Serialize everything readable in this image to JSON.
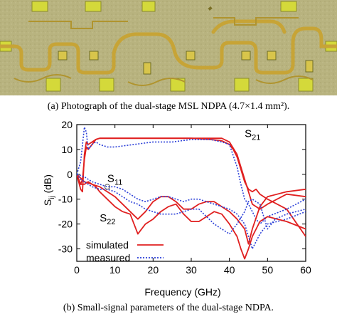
{
  "caption_a": "(a) Photograph of the dual-stage MSL NDPA (4.7×1.4 mm²).",
  "caption_b": "(b) Small-signal parameters of the dual-stage NDPA.",
  "photo": {
    "description_icon": "chip-photo-icon",
    "palette": {
      "substrate": "#b9b583",
      "metal": "#c9a83a",
      "pad": "#d6dc3a"
    }
  },
  "chart_data": {
    "type": "line",
    "xlabel": "Frequency (GHz)",
    "ylabel": "S_ij (dB)",
    "xlim": [
      0,
      60
    ],
    "ylim": [
      -35,
      20
    ],
    "xticks": [
      0,
      10,
      20,
      30,
      40,
      50,
      60
    ],
    "yticks": [
      20,
      10,
      0,
      -10,
      -20,
      -30
    ],
    "grid": false,
    "legend_position": "bottom-left",
    "legend": [
      {
        "label": "simulated",
        "color": "#e02020",
        "style": "solid"
      },
      {
        "label": "measured",
        "color": "#2a3fd8",
        "style": "dotted"
      }
    ],
    "annotations": [
      {
        "text": "S",
        "sub": "21",
        "x": 44,
        "y": 15
      },
      {
        "text": "S",
        "sub": "11",
        "x": 8,
        "y": -3
      },
      {
        "text": "S",
        "sub": "22",
        "x": 6,
        "y": -19
      }
    ],
    "series": [
      {
        "name": "simulated",
        "param": "S21",
        "color": "#e02020",
        "style": "solid",
        "x": [
          0,
          1,
          1.5,
          2,
          2.5,
          3,
          4,
          5,
          6,
          8,
          10,
          15,
          20,
          25,
          30,
          35,
          38,
          40,
          41,
          42,
          43,
          44,
          45,
          46,
          47,
          48,
          50,
          55,
          60
        ],
        "y": [
          0,
          -6,
          -7,
          8,
          13,
          12,
          13,
          14,
          14.5,
          14.5,
          14.5,
          14.5,
          14.5,
          14.5,
          14.5,
          14,
          13.5,
          12,
          10,
          7,
          2,
          -3,
          -6,
          -7,
          -6,
          -8,
          -10,
          -14,
          -25
        ]
      },
      {
        "name": "simulated",
        "param": "S21b",
        "color": "#e02020",
        "style": "solid",
        "x": [
          0,
          1,
          1.5,
          2,
          2.5,
          3,
          4,
          5,
          6,
          8,
          10,
          15,
          20,
          25,
          30,
          35,
          38,
          40,
          42,
          44,
          46,
          48,
          50,
          55,
          60
        ],
        "y": [
          0,
          -4,
          -2,
          6,
          11,
          10,
          12,
          14,
          14.5,
          14.5,
          14.5,
          14.5,
          14.5,
          14.5,
          14.5,
          14.5,
          14.5,
          13,
          8,
          -2,
          -12,
          -14,
          -12,
          -8,
          -9
        ]
      },
      {
        "name": "measured",
        "param": "S21",
        "color": "#2a3fd8",
        "style": "dotted",
        "x": [
          0,
          1,
          2,
          2.5,
          3,
          4,
          5,
          6,
          8,
          10,
          15,
          20,
          25,
          30,
          35,
          38,
          40,
          42,
          43,
          44,
          45,
          46,
          47,
          48,
          50,
          55,
          60
        ],
        "y": [
          0,
          5,
          19,
          17,
          10,
          12,
          13,
          12,
          11,
          11,
          12,
          13,
          13,
          14,
          14,
          13,
          12,
          3,
          -4,
          -10,
          -12,
          -15,
          -18,
          -20,
          -17,
          -14,
          -10
        ]
      },
      {
        "name": "simulated",
        "param": "S11",
        "color": "#e02020",
        "style": "solid",
        "x": [
          0,
          2,
          4,
          6,
          8,
          10,
          12,
          14,
          16,
          18,
          20,
          22,
          24,
          26,
          28,
          30,
          32,
          34,
          36,
          38,
          40,
          42,
          44,
          45,
          46,
          48,
          50,
          55,
          60
        ],
        "y": [
          0,
          -3,
          -4,
          -5,
          -7,
          -9,
          -12,
          -15,
          -18,
          -15,
          -11,
          -9,
          -9,
          -11,
          -14,
          -14,
          -12,
          -11,
          -11,
          -13,
          -15,
          -18,
          -22,
          -28,
          -22,
          -13,
          -9,
          -7,
          -6
        ]
      },
      {
        "name": "measured",
        "param": "S11",
        "color": "#2a3fd8",
        "style": "dotted",
        "x": [
          0,
          2,
          4,
          6,
          8,
          10,
          12,
          14,
          16,
          18,
          20,
          22,
          24,
          26,
          28,
          30,
          32,
          34,
          36,
          38,
          40,
          42,
          44,
          46,
          48,
          50,
          55,
          60
        ],
        "y": [
          0,
          -1,
          -3,
          -4,
          -5,
          -5,
          -6,
          -8,
          -10,
          -11,
          -10,
          -9,
          -9,
          -10,
          -11,
          -10,
          -10,
          -11,
          -12,
          -13,
          -14,
          -16,
          -20,
          -30,
          -24,
          -20,
          -18,
          -15
        ]
      },
      {
        "name": "simulated",
        "param": "S22",
        "color": "#e02020",
        "style": "solid",
        "x": [
          0,
          1,
          2,
          3,
          4,
          5,
          6,
          8,
          10,
          12,
          14,
          16,
          18,
          20,
          22,
          24,
          26,
          28,
          30,
          32,
          34,
          36,
          38,
          40,
          42,
          43,
          44,
          45,
          46,
          48,
          50,
          55,
          60
        ],
        "y": [
          0,
          -4,
          -4,
          -3,
          -4,
          -5,
          -7,
          -10,
          -13,
          -15,
          -16,
          -24,
          -20,
          -18,
          -15,
          -13,
          -12,
          -16,
          -19,
          -19,
          -17,
          -15,
          -16,
          -20,
          -25,
          -30,
          -34,
          -30,
          -25,
          -19,
          -17,
          -19,
          -22
        ]
      },
      {
        "name": "measured",
        "param": "S22",
        "color": "#2a3fd8",
        "style": "dotted",
        "x": [
          0,
          1,
          2,
          3,
          4,
          6,
          8,
          10,
          12,
          14,
          16,
          18,
          20,
          22,
          24,
          26,
          28,
          30,
          32,
          34,
          36,
          38,
          40,
          42,
          44,
          45,
          46,
          48,
          50,
          52,
          55,
          60
        ],
        "y": [
          0,
          -2,
          -3,
          -4,
          -5,
          -6,
          -6,
          -7,
          -9,
          -11,
          -12,
          -14,
          -15,
          -16,
          -16,
          -16,
          -15,
          -14,
          -14,
          -17,
          -20,
          -22,
          -24,
          -20,
          -15,
          -11,
          -10,
          -12,
          -22,
          -18,
          -16,
          -14
        ]
      }
    ]
  }
}
